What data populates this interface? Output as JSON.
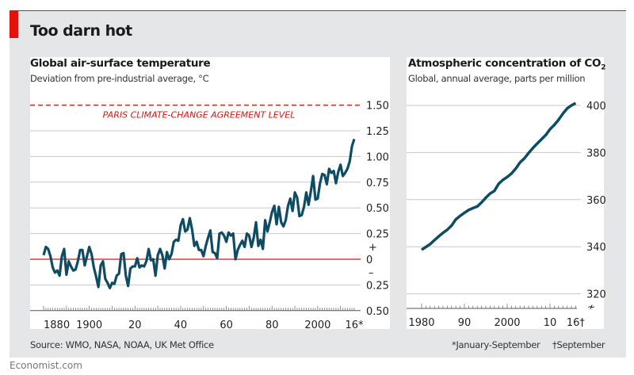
{
  "title": "Too darn hot",
  "footer": "Economist.com",
  "colors": {
    "accent": "#e3120b",
    "line": "#0e4c64",
    "grid": "#c8c8c8",
    "background": "#e5e6e7"
  },
  "chart_data": [
    {
      "type": "line",
      "title": "Global air-surface temperature",
      "subtitle": "Deviation from pre-industrial average, °C",
      "source": "Source: WMO, NASA, NOAA, UK Met Office",
      "footnote": "*January-September",
      "x_start": 1880,
      "x_end": 2016,
      "ylim": [
        -0.5,
        1.5
      ],
      "yticks": [
        {
          "v": 1.5,
          "l": "1.50"
        },
        {
          "v": 1.25,
          "l": "1.25"
        },
        {
          "v": 1.0,
          "l": "1.00"
        },
        {
          "v": 0.75,
          "l": "0.75"
        },
        {
          "v": 0.5,
          "l": "0.50"
        },
        {
          "v": 0.25,
          "l": "0.25"
        },
        {
          "v": 0,
          "l": "0"
        },
        {
          "v": -0.25,
          "l": "0.25"
        },
        {
          "v": -0.5,
          "l": "0.50"
        }
      ],
      "sign_labels": {
        "plus": "+",
        "minus": "–"
      },
      "xticks": [
        {
          "v": 1880,
          "l": "1880"
        },
        {
          "v": 1900,
          "l": "1900"
        },
        {
          "v": 1920,
          "l": "20"
        },
        {
          "v": 1940,
          "l": "40"
        },
        {
          "v": 1960,
          "l": "60"
        },
        {
          "v": 1980,
          "l": "80"
        },
        {
          "v": 2000,
          "l": "2000"
        },
        {
          "v": 2016,
          "l": "16*"
        }
      ],
      "reference_line": {
        "value": 1.5,
        "label": "PARIS CLIMATE-CHANGE AGREEMENT LEVEL",
        "style": "dashed"
      },
      "values": [
        0.04,
        0.12,
        0.1,
        0.03,
        -0.08,
        -0.13,
        -0.11,
        -0.16,
        0.03,
        0.1,
        -0.15,
        -0.02,
        -0.07,
        -0.11,
        -0.1,
        -0.02,
        0.09,
        0.09,
        -0.06,
        0.03,
        0.12,
        0.05,
        -0.08,
        -0.17,
        -0.27,
        -0.06,
        -0.02,
        -0.19,
        -0.23,
        -0.28,
        -0.23,
        -0.24,
        -0.16,
        -0.14,
        0.05,
        0.06,
        -0.16,
        -0.26,
        -0.09,
        -0.07,
        -0.07,
        0.01,
        -0.08,
        -0.06,
        -0.07,
        -0.02,
        0.1,
        -0.01,
        0.0,
        -0.16,
        0.04,
        0.1,
        0.04,
        -0.09,
        0.07,
        0.0,
        0.05,
        0.17,
        0.19,
        0.18,
        0.33,
        0.39,
        0.27,
        0.29,
        0.4,
        0.29,
        0.13,
        0.17,
        0.09,
        0.09,
        0.03,
        0.13,
        0.21,
        0.28,
        0.07,
        0.06,
        0.01,
        0.25,
        0.26,
        0.23,
        0.17,
        0.26,
        0.23,
        0.25,
        0.0,
        0.09,
        0.14,
        0.18,
        0.12,
        0.25,
        0.23,
        0.12,
        0.21,
        0.36,
        0.13,
        0.19,
        0.1,
        0.38,
        0.27,
        0.36,
        0.46,
        0.52,
        0.34,
        0.51,
        0.36,
        0.32,
        0.38,
        0.52,
        0.59,
        0.47,
        0.65,
        0.6,
        0.42,
        0.43,
        0.51,
        0.65,
        0.53,
        0.66,
        0.81,
        0.58,
        0.59,
        0.74,
        0.83,
        0.82,
        0.73,
        0.88,
        0.84,
        0.86,
        0.74,
        0.85,
        0.92,
        0.81,
        0.84,
        0.88,
        0.95,
        1.1,
        1.17
      ]
    },
    {
      "type": "line",
      "title": "Atmospheric concentration of CO",
      "title_sub": "2",
      "subtitle": "Global, annual average, parts per million",
      "footnote": "†September",
      "x_start": 1980,
      "x_end": 2016,
      "ylim": [
        320,
        400
      ],
      "yticks": [
        {
          "v": 400,
          "l": "400"
        },
        {
          "v": 380,
          "l": "380"
        },
        {
          "v": 360,
          "l": "360"
        },
        {
          "v": 340,
          "l": "340"
        },
        {
          "v": 320,
          "l": "320"
        }
      ],
      "xticks": [
        {
          "v": 1980,
          "l": "1980"
        },
        {
          "v": 1990,
          "l": "90"
        },
        {
          "v": 2000,
          "l": "2000"
        },
        {
          "v": 2010,
          "l": "10"
        },
        {
          "v": 2016,
          "l": "16†"
        }
      ],
      "axis_break": true,
      "values": [
        338.7,
        339.9,
        341.1,
        342.8,
        344.4,
        345.9,
        347.2,
        349.0,
        351.6,
        353.1,
        354.4,
        355.6,
        356.4,
        357.1,
        358.8,
        360.8,
        362.6,
        363.7,
        366.7,
        368.4,
        369.6,
        371.1,
        373.2,
        375.8,
        377.5,
        379.8,
        381.9,
        383.8,
        385.6,
        387.4,
        389.9,
        391.7,
        393.9,
        396.5,
        398.7,
        400.0,
        401.0
      ]
    }
  ]
}
